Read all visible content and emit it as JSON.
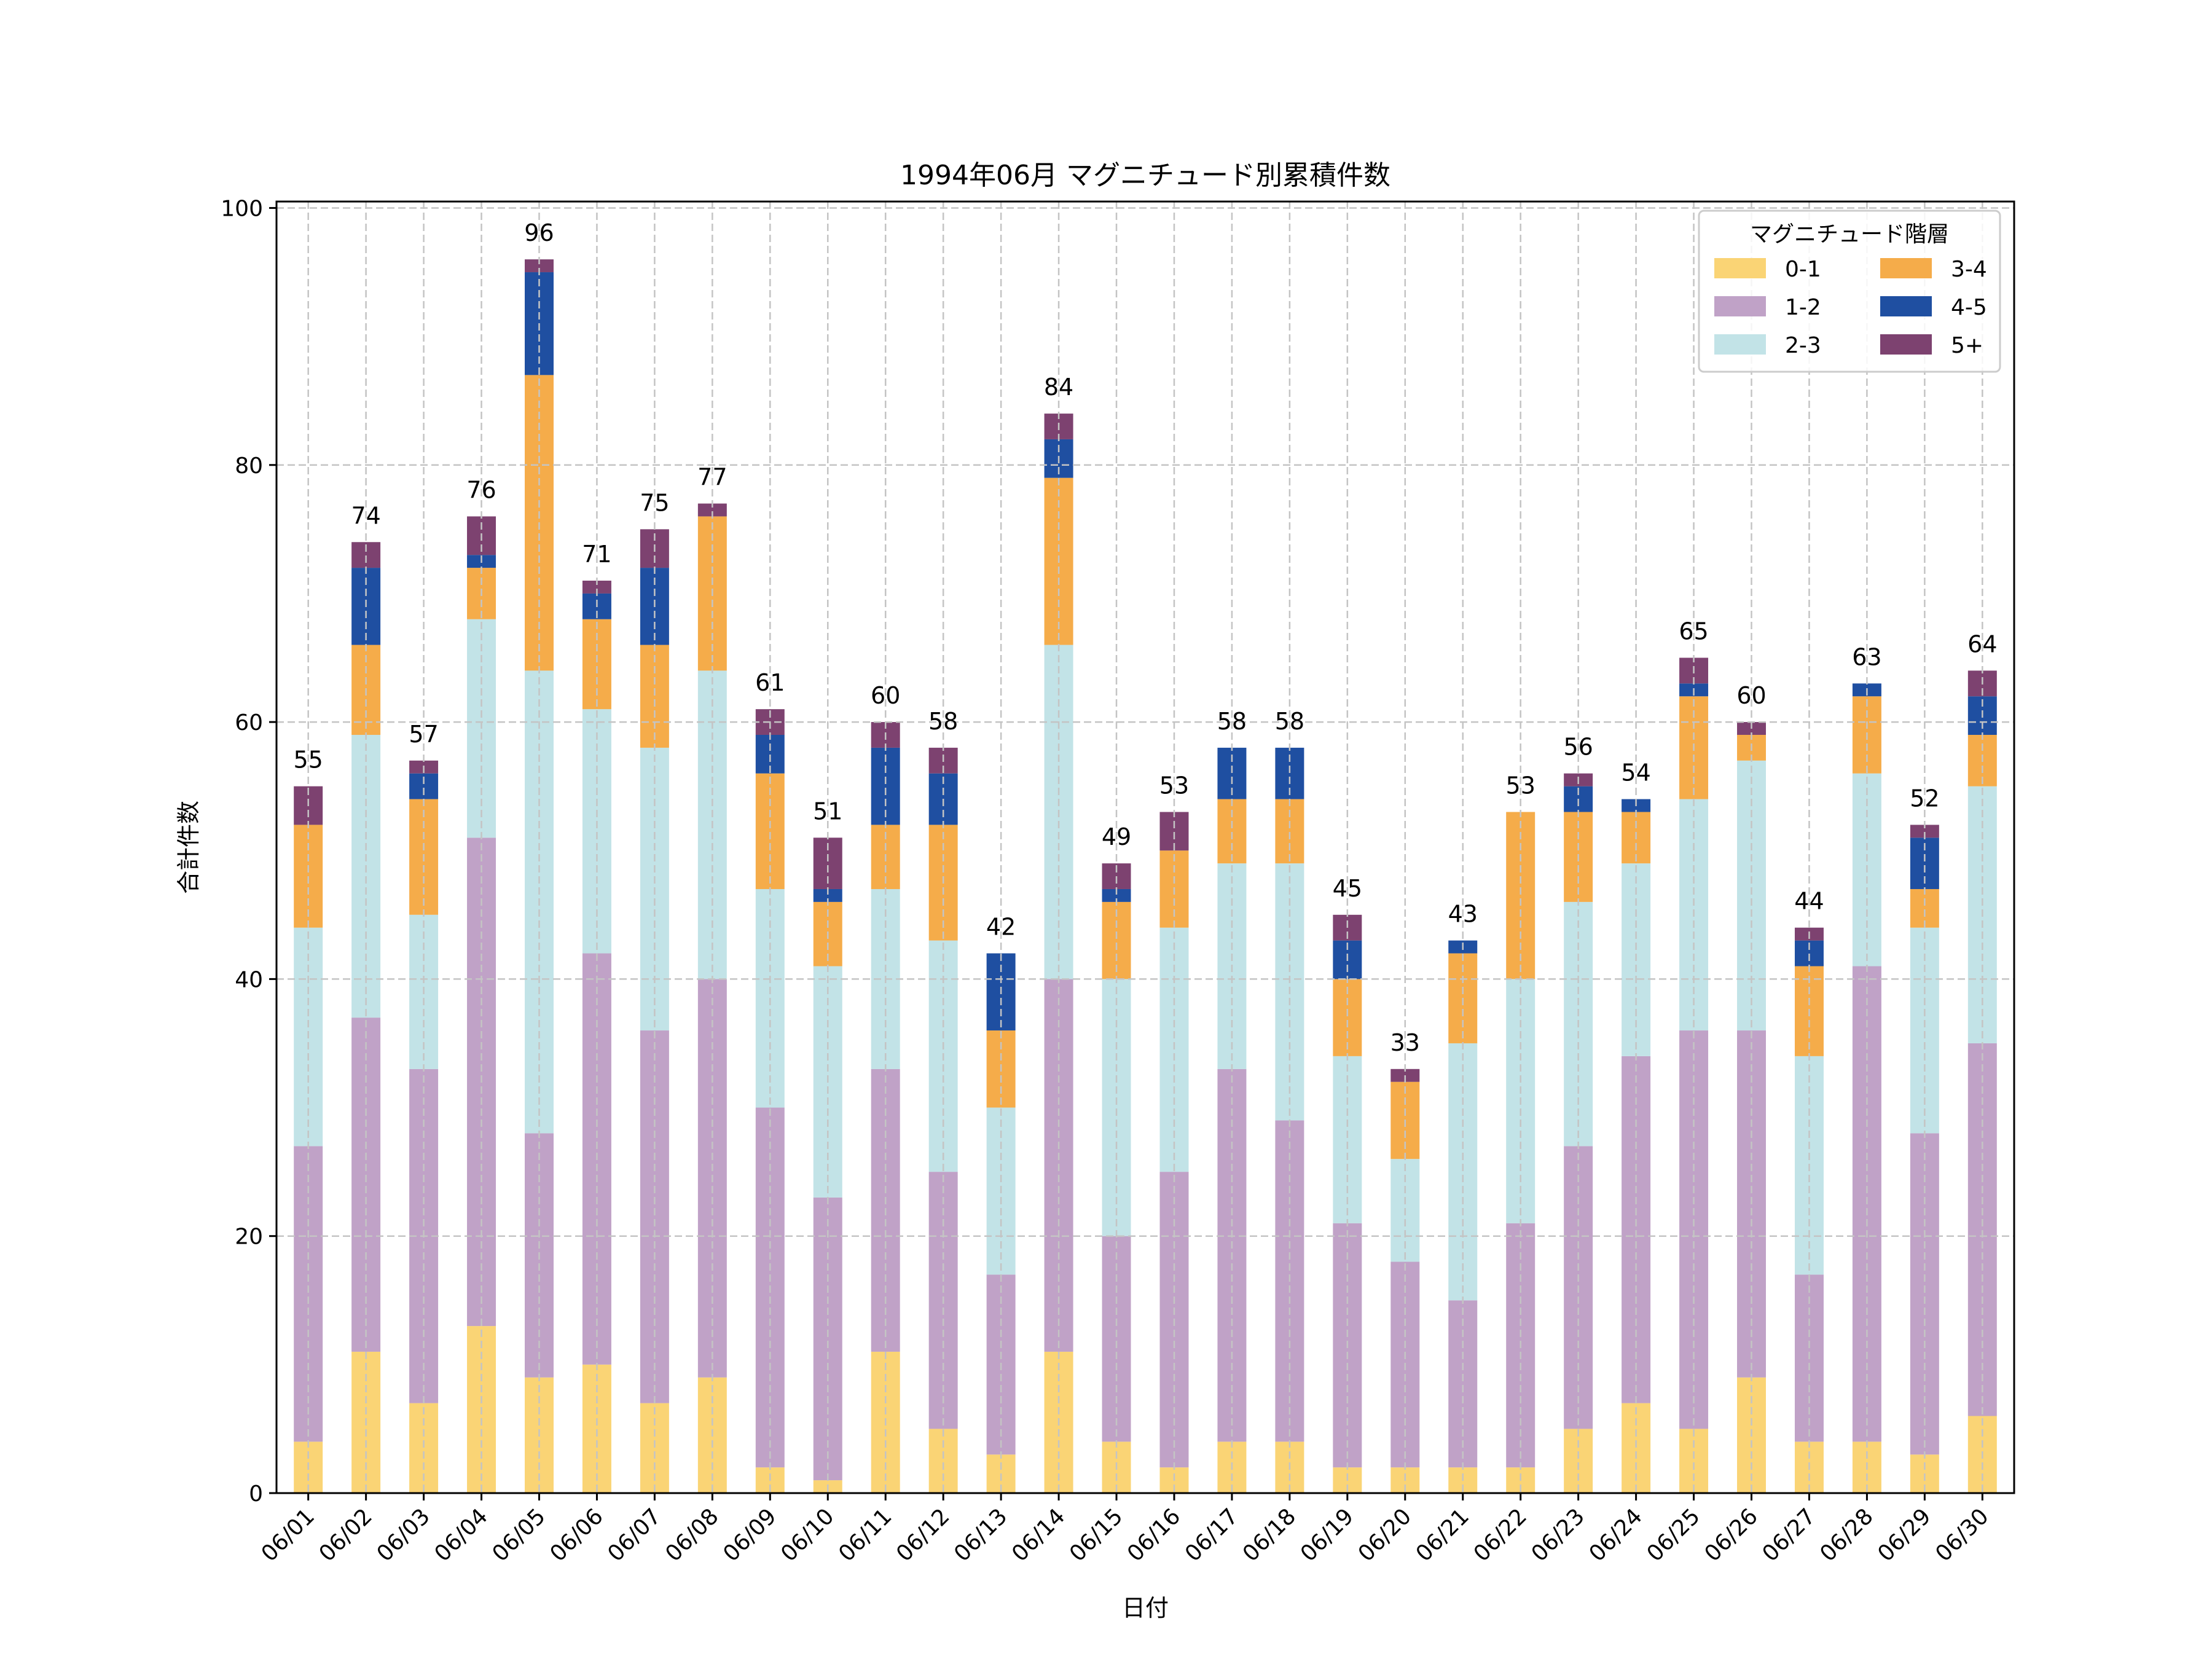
{
  "chart_data": {
    "type": "bar",
    "stacked": true,
    "title": "1994年06月 マグニチュード別累積件数",
    "xlabel": "日付",
    "ylabel": "合計件数",
    "ylim": [
      0,
      100
    ],
    "yticks": [
      0,
      20,
      40,
      60,
      80,
      100
    ],
    "grid": true,
    "legend": {
      "title": "マグニチュード階層",
      "placement": "top-right",
      "columns": 2
    },
    "categories": [
      "06/01",
      "06/02",
      "06/03",
      "06/04",
      "06/05",
      "06/06",
      "06/07",
      "06/08",
      "06/09",
      "06/10",
      "06/11",
      "06/12",
      "06/13",
      "06/14",
      "06/15",
      "06/16",
      "06/17",
      "06/18",
      "06/19",
      "06/20",
      "06/21",
      "06/22",
      "06/23",
      "06/24",
      "06/25",
      "06/26",
      "06/27",
      "06/28",
      "06/29",
      "06/30"
    ],
    "series": [
      {
        "name": "0-1",
        "color": "#FAD475",
        "values": [
          4,
          11,
          7,
          13,
          9,
          10,
          7,
          9,
          2,
          1,
          11,
          5,
          3,
          11,
          4,
          2,
          4,
          4,
          2,
          2,
          2,
          2,
          5,
          7,
          5,
          9,
          4,
          4,
          3,
          6
        ]
      },
      {
        "name": "1-2",
        "color": "#C0A2C7",
        "values": [
          23,
          26,
          26,
          38,
          19,
          32,
          29,
          31,
          28,
          22,
          22,
          20,
          14,
          29,
          16,
          23,
          29,
          25,
          19,
          16,
          13,
          19,
          22,
          27,
          31,
          27,
          13,
          37,
          25,
          29
        ]
      },
      {
        "name": "2-3",
        "color": "#C2E3E7",
        "values": [
          17,
          22,
          12,
          17,
          36,
          19,
          22,
          24,
          17,
          18,
          14,
          18,
          13,
          26,
          20,
          19,
          16,
          20,
          13,
          8,
          20,
          19,
          19,
          15,
          18,
          21,
          17,
          15,
          16,
          20
        ]
      },
      {
        "name": "3-4",
        "color": "#F5AC4A",
        "values": [
          8,
          7,
          9,
          4,
          23,
          7,
          8,
          12,
          9,
          5,
          5,
          9,
          6,
          13,
          6,
          6,
          5,
          5,
          6,
          6,
          7,
          13,
          7,
          4,
          8,
          2,
          7,
          6,
          3,
          4
        ]
      },
      {
        "name": "4-5",
        "color": "#1F4FA1",
        "values": [
          0,
          6,
          2,
          1,
          8,
          2,
          6,
          0,
          3,
          1,
          6,
          4,
          6,
          3,
          1,
          0,
          4,
          4,
          3,
          0,
          1,
          0,
          2,
          1,
          1,
          0,
          2,
          1,
          4,
          3
        ]
      },
      {
        "name": "5+",
        "color": "#7D4270",
        "values": [
          3,
          2,
          1,
          3,
          1,
          1,
          3,
          1,
          2,
          4,
          2,
          2,
          0,
          2,
          2,
          3,
          0,
          0,
          2,
          1,
          0,
          0,
          1,
          0,
          2,
          1,
          1,
          0,
          1,
          2
        ]
      }
    ],
    "totals": [
      55,
      74,
      57,
      76,
      96,
      71,
      75,
      77,
      61,
      51,
      60,
      58,
      42,
      84,
      49,
      53,
      58,
      58,
      45,
      33,
      43,
      53,
      56,
      54,
      65,
      60,
      44,
      63,
      52,
      64
    ]
  }
}
